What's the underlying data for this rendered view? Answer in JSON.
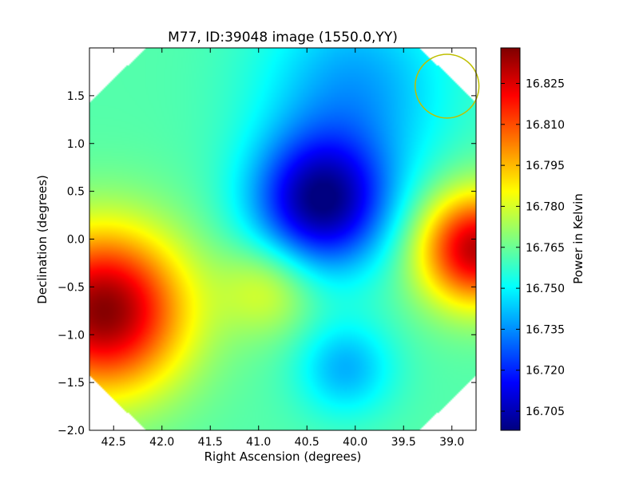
{
  "chart_data": {
    "type": "heatmap",
    "title": "M77, ID:39048 image (1550.0,YY)",
    "xlabel": "Right Ascension (degrees)",
    "ylabel": "Declination (degrees)",
    "xlim": [
      42.75,
      38.75
    ],
    "ylim": [
      -2.0,
      2.0
    ],
    "x_ticks": [
      42.5,
      42.0,
      41.5,
      41.0,
      40.5,
      40.0,
      39.5,
      39.0
    ],
    "x_tick_labels": [
      "42.5",
      "42.0",
      "41.5",
      "41.0",
      "40.5",
      "40.0",
      "39.5",
      "39.0"
    ],
    "y_ticks": [
      -2.0,
      -1.5,
      -1.0,
      -0.5,
      0.0,
      0.5,
      1.0,
      1.5
    ],
    "y_tick_labels": [
      "−2.0",
      "−1.5",
      "−1.0",
      "−0.5",
      "0.0",
      "0.5",
      "1.0",
      "1.5"
    ],
    "colorbar": {
      "label": "Power in Kelvin",
      "range": [
        16.698,
        16.838
      ],
      "ticks": [
        16.705,
        16.72,
        16.735,
        16.75,
        16.765,
        16.78,
        16.795,
        16.81,
        16.825
      ],
      "tick_labels": [
        "16.705",
        "16.720",
        "16.735",
        "16.750",
        "16.765",
        "16.780",
        "16.795",
        "16.810",
        "16.825"
      ]
    },
    "colormap": "jet",
    "background_level": 16.762,
    "features": [
      {
        "kind": "cold spot",
        "ra": 40.35,
        "dec": 0.38,
        "value": 16.701
      },
      {
        "kind": "hot spot",
        "ra": 42.6,
        "dec": -0.75,
        "value": 16.837
      },
      {
        "kind": "hot spot",
        "ra": 38.75,
        "dec": -0.1,
        "value": 16.83
      },
      {
        "kind": "cool spot",
        "ra": 40.1,
        "dec": -1.35,
        "value": 16.74
      },
      {
        "kind": "warm spot",
        "ra": 40.9,
        "dec": -0.5,
        "value": 16.782
      },
      {
        "kind": "cool region",
        "ra": 40.0,
        "dec": 1.6,
        "value": 16.738
      }
    ],
    "beam_circle": {
      "ra": 39.05,
      "dec": 1.6,
      "radius_deg": 0.33,
      "color": "#bfbf00"
    },
    "grid": false,
    "legend": "none"
  }
}
